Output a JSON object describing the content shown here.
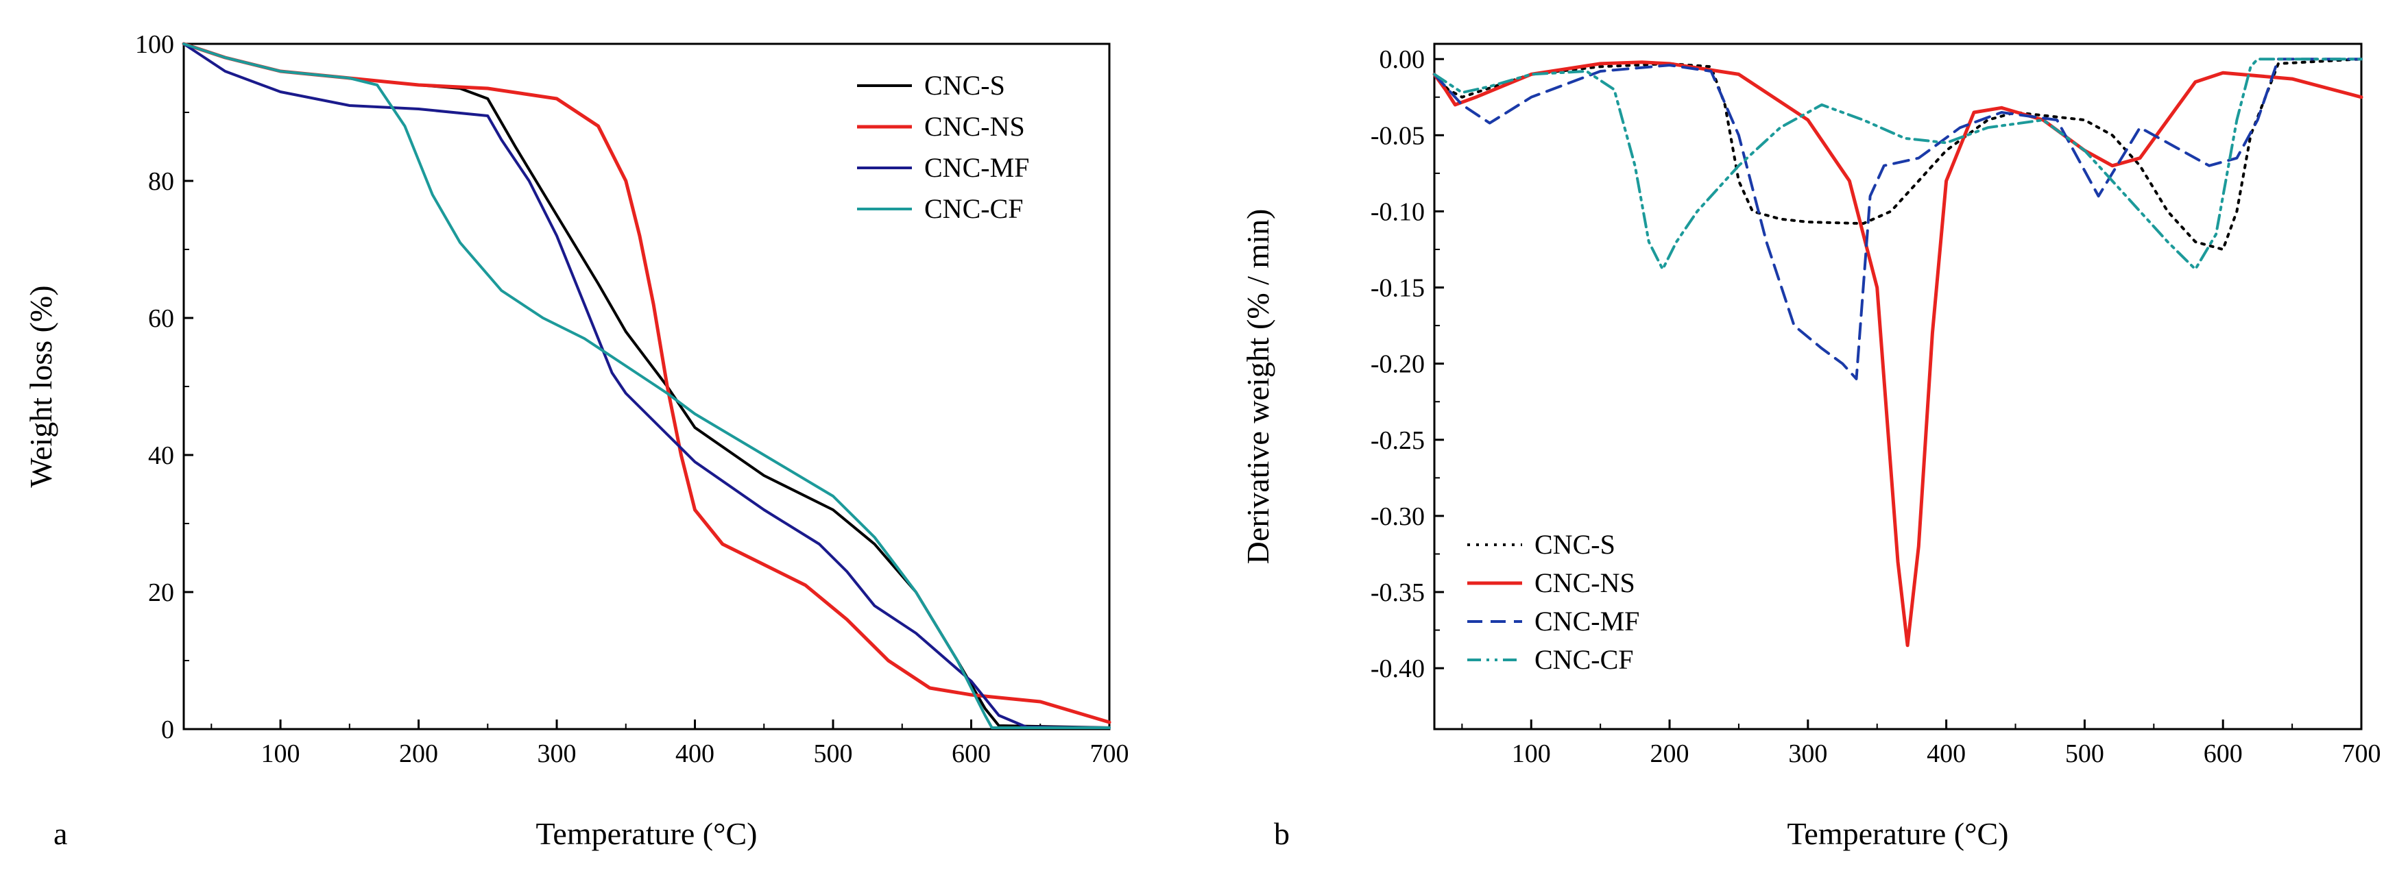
{
  "chart_data": [
    {
      "panel": "a",
      "type": "line",
      "title": "",
      "xlabel": "Temperature (°C)",
      "ylabel": "Weight loss (%)",
      "xlim": [
        30,
        700
      ],
      "ylim": [
        0,
        100
      ],
      "xticks": [
        100,
        200,
        300,
        400,
        500,
        600,
        700
      ],
      "xtick_labels": [
        "100",
        "200",
        "300",
        "400",
        "500",
        "600",
        "700"
      ],
      "yticks": [
        0,
        20,
        40,
        60,
        80,
        100
      ],
      "ytick_labels": [
        "0",
        "20",
        "40",
        "60",
        "80",
        "100"
      ],
      "legend_position": "top-right",
      "series": [
        {
          "name": "CNC-S",
          "color": "#000000",
          "dash": "solid",
          "x": [
            30,
            60,
            100,
            150,
            200,
            230,
            250,
            270,
            300,
            330,
            350,
            380,
            400,
            450,
            500,
            530,
            560,
            590,
            610,
            620,
            700
          ],
          "y": [
            100,
            98,
            96,
            95,
            94,
            93.5,
            92,
            85,
            75,
            65,
            58,
            50,
            44,
            37,
            32,
            27,
            20,
            10,
            3,
            0.5,
            0.2
          ]
        },
        {
          "name": "CNC-NS",
          "color": "#e8231f",
          "dash": "solid",
          "x": [
            30,
            60,
            100,
            150,
            200,
            250,
            300,
            330,
            350,
            360,
            370,
            380,
            390,
            400,
            420,
            450,
            480,
            510,
            540,
            570,
            600,
            650,
            700
          ],
          "y": [
            100,
            98,
            96,
            95,
            94,
            93.5,
            92,
            88,
            80,
            72,
            62,
            50,
            40,
            32,
            27,
            24,
            21,
            16,
            10,
            6,
            5,
            4,
            1
          ]
        },
        {
          "name": "CNC-MF",
          "color": "#1a1a8c",
          "dash": "solid",
          "x": [
            30,
            60,
            100,
            150,
            200,
            250,
            260,
            280,
            300,
            320,
            340,
            350,
            380,
            400,
            450,
            490,
            510,
            530,
            560,
            600,
            620,
            640,
            700
          ],
          "y": [
            100,
            96,
            93,
            91,
            90.5,
            89.5,
            86,
            80,
            72,
            62,
            52,
            49,
            43,
            39,
            32,
            27,
            23,
            18,
            14,
            7,
            2,
            0.3,
            0.2
          ]
        },
        {
          "name": "CNC-CF",
          "color": "#1c9a9a",
          "dash": "solid",
          "x": [
            30,
            60,
            100,
            150,
            170,
            190,
            210,
            230,
            260,
            290,
            320,
            350,
            380,
            400,
            450,
            500,
            530,
            560,
            590,
            610,
            615,
            700
          ],
          "y": [
            100,
            98,
            96,
            95,
            94,
            88,
            78,
            71,
            64,
            60,
            57,
            53,
            49,
            46,
            40,
            34,
            28,
            20,
            10,
            2,
            0.2,
            0.2
          ]
        }
      ]
    },
    {
      "panel": "b",
      "type": "line",
      "title": "",
      "xlabel": "Temperature (°C)",
      "ylabel": "Derivative weight  (% / min)",
      "xlim": [
        30,
        700
      ],
      "ylim": [
        -0.44,
        0.01
      ],
      "xticks": [
        100,
        200,
        300,
        400,
        500,
        600,
        700
      ],
      "xtick_labels": [
        "100",
        "200",
        "300",
        "400",
        "500",
        "600",
        "700"
      ],
      "yticks": [
        0.0,
        -0.05,
        -0.1,
        -0.15,
        -0.2,
        -0.25,
        -0.3,
        -0.35,
        -0.4
      ],
      "ytick_labels": [
        "0.00",
        "-0.05",
        "-0.10",
        "-0.15",
        "-0.20",
        "-0.25",
        "-0.30",
        "-0.35",
        "-0.40"
      ],
      "legend_position": "bottom-left",
      "series": [
        {
          "name": "CNC-S",
          "color": "#000000",
          "dash": "dotted",
          "x": [
            30,
            40,
            50,
            100,
            150,
            200,
            230,
            240,
            250,
            260,
            280,
            300,
            340,
            360,
            380,
            400,
            430,
            450,
            500,
            520,
            540,
            560,
            580,
            600,
            610,
            620,
            640,
            700
          ],
          "y": [
            -0.01,
            -0.02,
            -0.025,
            -0.01,
            -0.005,
            -0.003,
            -0.005,
            -0.03,
            -0.08,
            -0.1,
            -0.105,
            -0.107,
            -0.108,
            -0.1,
            -0.08,
            -0.06,
            -0.04,
            -0.035,
            -0.04,
            -0.05,
            -0.07,
            -0.1,
            -0.12,
            -0.125,
            -0.1,
            -0.05,
            -0.003,
            0.0
          ]
        },
        {
          "name": "CNC-NS",
          "color": "#e8231f",
          "dash": "solid",
          "x": [
            30,
            38,
            45,
            60,
            100,
            150,
            180,
            200,
            250,
            300,
            330,
            350,
            360,
            365,
            372,
            380,
            390,
            400,
            420,
            440,
            470,
            500,
            520,
            540,
            560,
            580,
            600,
            650,
            700
          ],
          "y": [
            -0.01,
            -0.02,
            -0.03,
            -0.025,
            -0.01,
            -0.003,
            -0.002,
            -0.003,
            -0.01,
            -0.04,
            -0.08,
            -0.15,
            -0.27,
            -0.33,
            -0.385,
            -0.32,
            -0.18,
            -0.08,
            -0.035,
            -0.032,
            -0.04,
            -0.06,
            -0.07,
            -0.065,
            -0.04,
            -0.015,
            -0.009,
            -0.013,
            -0.025
          ]
        },
        {
          "name": "CNC-MF",
          "color": "#1a3aa8",
          "dash": "dashed",
          "x": [
            30,
            50,
            70,
            100,
            150,
            200,
            230,
            250,
            270,
            290,
            310,
            325,
            335,
            345,
            355,
            380,
            410,
            440,
            480,
            510,
            530,
            540,
            560,
            590,
            610,
            625,
            640,
            700
          ],
          "y": [
            -0.01,
            -0.03,
            -0.042,
            -0.025,
            -0.008,
            -0.004,
            -0.008,
            -0.05,
            -0.12,
            -0.175,
            -0.19,
            -0.2,
            -0.21,
            -0.09,
            -0.07,
            -0.065,
            -0.045,
            -0.035,
            -0.04,
            -0.09,
            -0.06,
            -0.045,
            -0.055,
            -0.07,
            -0.065,
            -0.04,
            0.0,
            0.0
          ]
        },
        {
          "name": "CNC-CF",
          "color": "#1c9a9a",
          "dash": "dashdotdot",
          "x": [
            30,
            50,
            70,
            100,
            140,
            160,
            175,
            185,
            195,
            205,
            220,
            250,
            280,
            310,
            340,
            370,
            400,
            430,
            470,
            500,
            530,
            560,
            580,
            595,
            610,
            620,
            625,
            700
          ],
          "y": [
            -0.01,
            -0.022,
            -0.018,
            -0.01,
            -0.008,
            -0.02,
            -0.07,
            -0.12,
            -0.138,
            -0.12,
            -0.1,
            -0.07,
            -0.045,
            -0.03,
            -0.04,
            -0.052,
            -0.055,
            -0.045,
            -0.04,
            -0.06,
            -0.09,
            -0.12,
            -0.138,
            -0.115,
            -0.04,
            -0.005,
            0.0,
            0.0
          ]
        }
      ]
    }
  ],
  "panel_letters": [
    "a",
    "b"
  ]
}
